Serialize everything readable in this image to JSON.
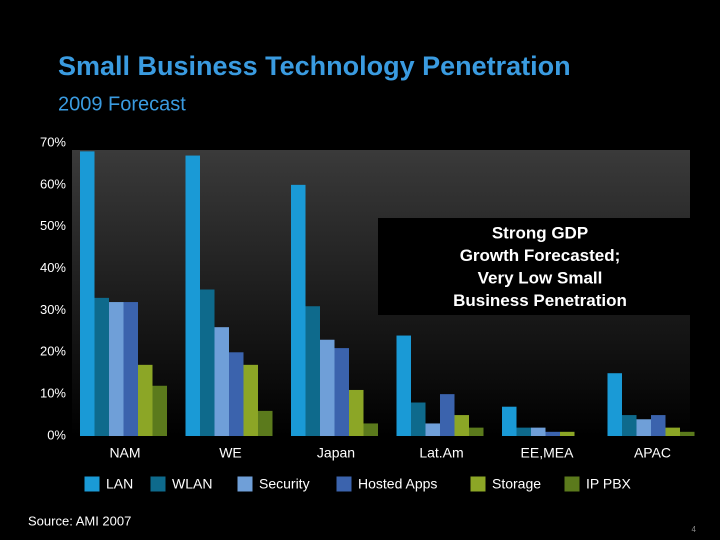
{
  "chart_data": {
    "type": "bar",
    "title": "Small Business Technology Penetration",
    "subtitle": "2009 Forecast",
    "categories": [
      "NAM",
      "WE",
      "Japan",
      "Lat.Am",
      "EE,MEA",
      "APAC"
    ],
    "series": [
      {
        "name": "LAN",
        "color": "#1a9ad6",
        "values": [
          68,
          67,
          60,
          24,
          7,
          15
        ]
      },
      {
        "name": "WLAN",
        "color": "#0e6a8c",
        "values": [
          33,
          35,
          31,
          8,
          2,
          5
        ]
      },
      {
        "name": "Security",
        "color": "#6f9fd8",
        "values": [
          32,
          26,
          23,
          3,
          2,
          4
        ]
      },
      {
        "name": "Hosted Apps",
        "color": "#3b63ad",
        "values": [
          32,
          20,
          21,
          10,
          1,
          5
        ]
      },
      {
        "name": "Storage",
        "color": "#8ca626",
        "values": [
          17,
          17,
          11,
          5,
          1,
          2
        ]
      },
      {
        "name": "IP PBX",
        "color": "#5b7a1c",
        "values": [
          12,
          6,
          3,
          2,
          0,
          1
        ]
      }
    ],
    "ylim": [
      0,
      70
    ],
    "yticks": [
      {
        "value": 0,
        "label": "0%"
      },
      {
        "value": 10,
        "label": "10%"
      },
      {
        "value": 20,
        "label": "20%"
      },
      {
        "value": 30,
        "label": "30%"
      },
      {
        "value": 40,
        "label": "40%"
      },
      {
        "value": 50,
        "label": "50%"
      },
      {
        "value": 60,
        "label": "60%"
      },
      {
        "value": 70,
        "label": "70%"
      }
    ],
    "annotation": [
      "Strong GDP",
      "Growth Forecasted;",
      "Very Low Small",
      "Business Penetration"
    ],
    "grid": false
  },
  "source": "Source: AMI 2007",
  "page_number": "4"
}
